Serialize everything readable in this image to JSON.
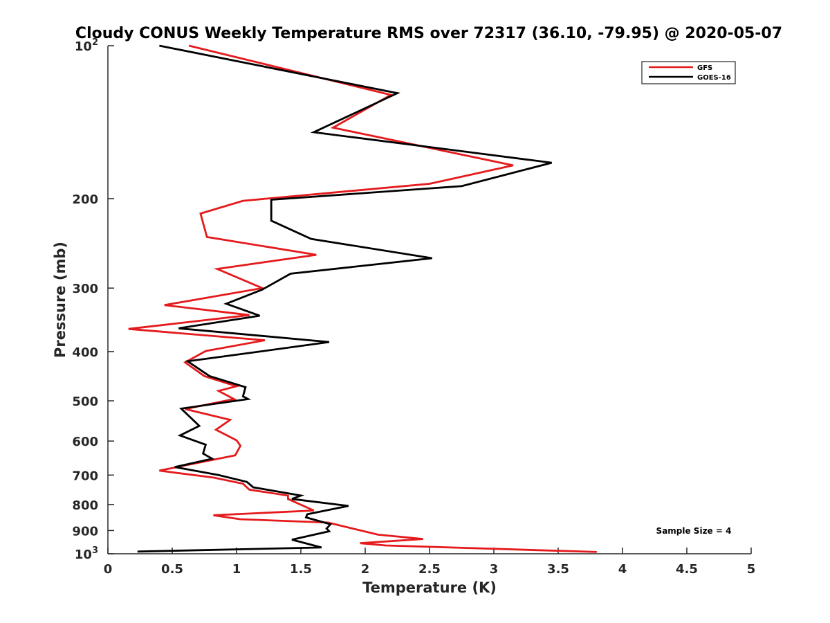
{
  "chart_data": {
    "type": "line",
    "title": "Cloudy CONUS Weekly Temperature RMS over 72317 (36.10, -79.95) @ 2020-05-07",
    "xlabel": "Temperature (K)",
    "ylabel": "Pressure (mb)",
    "xlim": [
      0,
      5
    ],
    "ylim": [
      100,
      1000
    ],
    "y_scale": "log",
    "y_reversed": true,
    "grid": false,
    "legend_position": "top-right",
    "x_ticks": [
      {
        "value": 0,
        "label": "0"
      },
      {
        "value": 0.5,
        "label": "0.5"
      },
      {
        "value": 1,
        "label": "1"
      },
      {
        "value": 1.5,
        "label": "1.5"
      },
      {
        "value": 2,
        "label": "2"
      },
      {
        "value": 2.5,
        "label": "2.5"
      },
      {
        "value": 3,
        "label": "3"
      },
      {
        "value": 3.5,
        "label": "3.5"
      },
      {
        "value": 4,
        "label": "4"
      },
      {
        "value": 4.5,
        "label": "4.5"
      },
      {
        "value": 5,
        "label": "5"
      }
    ],
    "y_ticks": [
      {
        "value": 100,
        "base": "10",
        "exp": "2"
      },
      {
        "value": 200,
        "base": "200",
        "exp": ""
      },
      {
        "value": 300,
        "base": "300",
        "exp": ""
      },
      {
        "value": 400,
        "base": "400",
        "exp": ""
      },
      {
        "value": 500,
        "base": "500",
        "exp": ""
      },
      {
        "value": 600,
        "base": "600",
        "exp": ""
      },
      {
        "value": 700,
        "base": "700",
        "exp": ""
      },
      {
        "value": 800,
        "base": "800",
        "exp": ""
      },
      {
        "value": 900,
        "base": "900",
        "exp": ""
      },
      {
        "value": 1000,
        "base": "10",
        "exp": "3"
      }
    ],
    "annotation": "Sample Size = 4",
    "series": [
      {
        "name": "GFS",
        "color": "#e41a1c",
        "points": [
          [
            0.63,
            100
          ],
          [
            2.2,
            125
          ],
          [
            1.75,
            145
          ],
          [
            3.15,
            172
          ],
          [
            2.5,
            187
          ],
          [
            1.05,
            202
          ],
          [
            0.72,
            214
          ],
          [
            0.77,
            238
          ],
          [
            1.62,
            258
          ],
          [
            0.85,
            275
          ],
          [
            1.2,
            300
          ],
          [
            0.44,
            324
          ],
          [
            1.1,
            339
          ],
          [
            0.16,
            361
          ],
          [
            1.22,
            380
          ],
          [
            0.76,
            399
          ],
          [
            0.6,
            420
          ],
          [
            0.75,
            447
          ],
          [
            1.0,
            468
          ],
          [
            0.86,
            478
          ],
          [
            0.98,
            496
          ],
          [
            0.6,
            519
          ],
          [
            0.95,
            545
          ],
          [
            0.84,
            570
          ],
          [
            1.0,
            598
          ],
          [
            1.03,
            613
          ],
          [
            0.99,
            640
          ],
          [
            0.4,
            686
          ],
          [
            0.82,
            708
          ],
          [
            1.05,
            728
          ],
          [
            1.1,
            748
          ],
          [
            1.4,
            768
          ],
          [
            1.4,
            780
          ],
          [
            1.6,
            822
          ],
          [
            0.82,
            840
          ],
          [
            1.03,
            855
          ],
          [
            1.71,
            868
          ],
          [
            2.1,
            917
          ],
          [
            2.45,
            935
          ],
          [
            1.96,
            953
          ],
          [
            2.16,
            963
          ],
          [
            3.8,
            992
          ]
        ]
      },
      {
        "name": "GOES-16",
        "color": "#000000",
        "points": [
          [
            0.4,
            100
          ],
          [
            2.25,
            124
          ],
          [
            1.6,
            148
          ],
          [
            3.45,
            170
          ],
          [
            2.75,
            189
          ],
          [
            1.27,
            201
          ],
          [
            1.27,
            221
          ],
          [
            1.58,
            240
          ],
          [
            2.52,
            262
          ],
          [
            1.42,
            281
          ],
          [
            1.2,
            302
          ],
          [
            0.92,
            322
          ],
          [
            1.18,
            340
          ],
          [
            0.55,
            360
          ],
          [
            1.72,
            383
          ],
          [
            1.18,
            400
          ],
          [
            0.62,
            418
          ],
          [
            0.79,
            447
          ],
          [
            1.07,
            470
          ],
          [
            1.05,
            490
          ],
          [
            1.09,
            496
          ],
          [
            0.57,
            518
          ],
          [
            0.71,
            560
          ],
          [
            0.56,
            585
          ],
          [
            0.76,
            610
          ],
          [
            0.74,
            635
          ],
          [
            0.81,
            650
          ],
          [
            0.52,
            675
          ],
          [
            0.86,
            700
          ],
          [
            1.08,
            722
          ],
          [
            1.13,
            740
          ],
          [
            1.5,
            768
          ],
          [
            1.43,
            780
          ],
          [
            1.87,
            805
          ],
          [
            1.55,
            836
          ],
          [
            1.54,
            848
          ],
          [
            1.73,
            875
          ],
          [
            1.7,
            892
          ],
          [
            1.72,
            903
          ],
          [
            1.43,
            938
          ],
          [
            1.66,
            972
          ],
          [
            0.23,
            990
          ]
        ]
      }
    ]
  }
}
